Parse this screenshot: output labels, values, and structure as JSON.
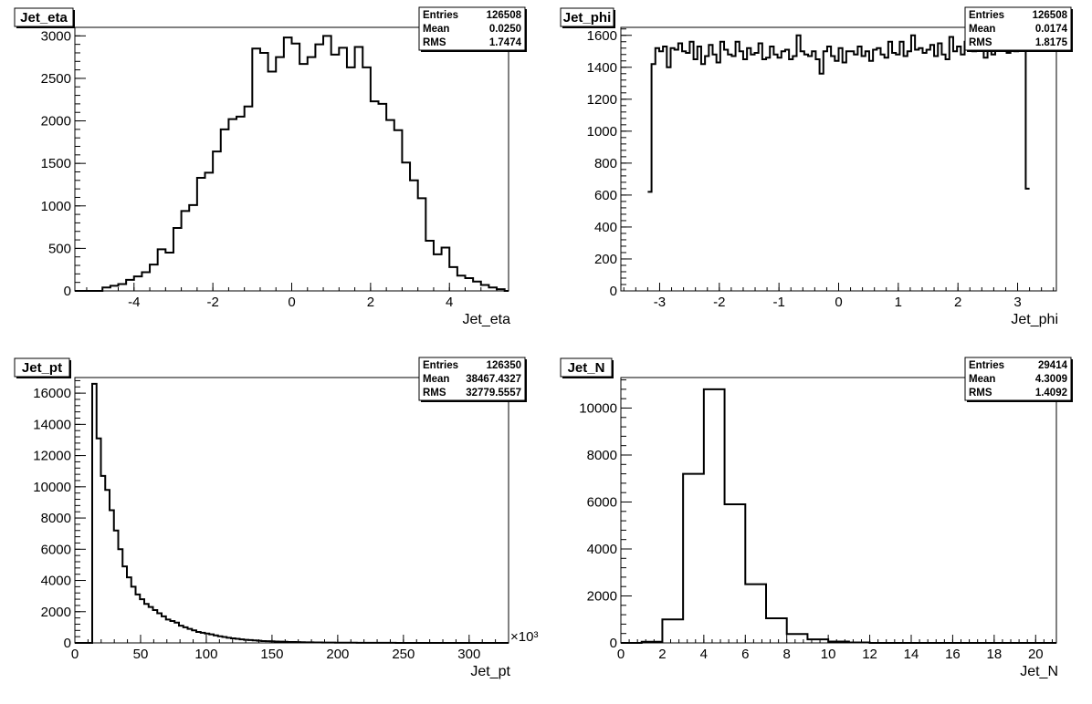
{
  "chart_data": [
    {
      "type": "histogram",
      "title": "Jet_eta",
      "xlabel": "Jet_eta",
      "ylabel": "",
      "xlim": [
        -5.5,
        5.5
      ],
      "ylim": [
        0,
        3100
      ],
      "x_ticks": [
        -4,
        -2,
        0,
        2,
        4
      ],
      "x_tick_labels": [
        "-4",
        "-2",
        "0",
        "2",
        "4"
      ],
      "y_ticks": [
        0,
        500,
        1000,
        1500,
        2000,
        2500,
        3000
      ],
      "y_tick_labels": [
        "0",
        "500",
        "1000",
        "1500",
        "2000",
        "2500",
        "3000"
      ],
      "x_multiplier": "",
      "stats": {
        "entries_label": "Entries",
        "entries": "126508",
        "mean_label": "Mean",
        "mean": "0.0250",
        "rms_label": "RMS",
        "rms": "1.7474"
      },
      "bins": [
        [
          -5.5,
          -5.0,
          0
        ],
        [
          -5.0,
          -4.8,
          0
        ],
        [
          -4.8,
          -4.6,
          40
        ],
        [
          -4.6,
          -4.4,
          60
        ],
        [
          -4.4,
          -4.2,
          80
        ],
        [
          -4.2,
          -4.0,
          130
        ],
        [
          -4.0,
          -3.8,
          170
        ],
        [
          -3.8,
          -3.6,
          220
        ],
        [
          -3.6,
          -3.4,
          310
        ],
        [
          -3.4,
          -3.2,
          490
        ],
        [
          -3.2,
          -3.0,
          450
        ],
        [
          -3.0,
          -2.8,
          740
        ],
        [
          -2.8,
          -2.6,
          940
        ],
        [
          -2.6,
          -2.4,
          1010
        ],
        [
          -2.4,
          -2.2,
          1330
        ],
        [
          -2.2,
          -2.0,
          1390
        ],
        [
          -2.0,
          -1.8,
          1640
        ],
        [
          -1.8,
          -1.6,
          1900
        ],
        [
          -1.6,
          -1.4,
          2020
        ],
        [
          -1.4,
          -1.2,
          2050
        ],
        [
          -1.2,
          -1.0,
          2170
        ],
        [
          -1.0,
          -0.8,
          2850
        ],
        [
          -0.8,
          -0.6,
          2800
        ],
        [
          -0.6,
          -0.4,
          2580
        ],
        [
          -0.4,
          -0.2,
          2750
        ],
        [
          -0.2,
          0.0,
          2980
        ],
        [
          0.0,
          0.2,
          2910
        ],
        [
          0.2,
          0.4,
          2670
        ],
        [
          0.4,
          0.6,
          2750
        ],
        [
          0.6,
          0.8,
          2900
        ],
        [
          0.8,
          1.0,
          3000
        ],
        [
          1.0,
          1.2,
          2780
        ],
        [
          1.2,
          1.4,
          2860
        ],
        [
          1.4,
          1.6,
          2630
        ],
        [
          1.6,
          1.8,
          2870
        ],
        [
          1.8,
          2.0,
          2630
        ],
        [
          2.0,
          2.2,
          2230
        ],
        [
          2.2,
          2.4,
          2200
        ],
        [
          2.4,
          2.6,
          2010
        ],
        [
          2.6,
          2.8,
          1890
        ],
        [
          2.8,
          3.0,
          1510
        ],
        [
          3.0,
          3.2,
          1300
        ],
        [
          3.2,
          3.4,
          1090
        ],
        [
          3.4,
          3.6,
          590
        ],
        [
          3.6,
          3.8,
          430
        ],
        [
          3.8,
          4.0,
          510
        ],
        [
          4.0,
          4.2,
          280
        ],
        [
          4.2,
          4.4,
          180
        ],
        [
          4.4,
          4.6,
          150
        ],
        [
          4.6,
          4.8,
          110
        ],
        [
          4.8,
          5.0,
          70
        ],
        [
          5.0,
          5.2,
          40
        ],
        [
          5.2,
          5.4,
          20
        ],
        [
          5.4,
          5.5,
          0
        ]
      ]
    },
    {
      "type": "histogram",
      "title": "Jet_phi",
      "xlabel": "Jet_phi",
      "ylabel": "",
      "xlim": [
        -3.65,
        3.65
      ],
      "ylim": [
        0,
        1650
      ],
      "x_ticks": [
        -3,
        -2,
        -1,
        0,
        1,
        2,
        3
      ],
      "x_tick_labels": [
        "-3",
        "-2",
        "-1",
        "0",
        "1",
        "2",
        "3"
      ],
      "y_ticks": [
        0,
        200,
        400,
        600,
        800,
        1000,
        1200,
        1400,
        1600
      ],
      "y_tick_labels": [
        "0",
        "200",
        "400",
        "600",
        "800",
        "1000",
        "1200",
        "1400",
        "1600"
      ],
      "x_multiplier": "",
      "stats": {
        "entries_label": "Entries",
        "entries": "126508",
        "mean_label": "Mean",
        "mean": "0.0174",
        "rms_label": "RMS",
        "rms": "1.8175"
      },
      "bins_start": -3.2,
      "bin_width": 0.064,
      "values": [
        620,
        1420,
        1520,
        1500,
        1530,
        1400,
        1520,
        1510,
        1550,
        1500,
        1490,
        1560,
        1450,
        1530,
        1420,
        1470,
        1540,
        1480,
        1430,
        1560,
        1510,
        1480,
        1470,
        1560,
        1500,
        1450,
        1520,
        1480,
        1490,
        1550,
        1450,
        1460,
        1530,
        1480,
        1460,
        1500,
        1510,
        1450,
        1470,
        1600,
        1500,
        1480,
        1470,
        1500,
        1450,
        1360,
        1500,
        1530,
        1470,
        1440,
        1520,
        1430,
        1500,
        1500,
        1480,
        1530,
        1470,
        1500,
        1440,
        1510,
        1520,
        1480,
        1460,
        1560,
        1490,
        1480,
        1560,
        1470,
        1500,
        1600,
        1510,
        1520,
        1490,
        1510,
        1540,
        1470,
        1550,
        1480,
        1450,
        1590,
        1500,
        1530,
        1480,
        1560,
        1510,
        1500,
        1600,
        1520,
        1460,
        1540,
        1480,
        1580,
        1560,
        1510,
        1490,
        1530,
        1500,
        1540,
        1510,
        640
      ]
    },
    {
      "type": "histogram",
      "title": "Jet_pt",
      "xlabel": "Jet_pt",
      "ylabel": "",
      "xlim": [
        0,
        330
      ],
      "ylim": [
        0,
        17000
      ],
      "x_ticks": [
        0,
        50,
        100,
        150,
        200,
        250,
        300
      ],
      "x_tick_labels": [
        "0",
        "50",
        "100",
        "150",
        "200",
        "250",
        "300"
      ],
      "y_ticks": [
        0,
        2000,
        4000,
        6000,
        8000,
        10000,
        12000,
        14000,
        16000
      ],
      "y_tick_labels": [
        "0",
        "2000",
        "4000",
        "6000",
        "8000",
        "10000",
        "12000",
        "14000",
        "16000"
      ],
      "x_multiplier": "×10³",
      "stats": {
        "entries_label": "Entries",
        "entries": "126350",
        "mean_label": "Mean",
        "mean": "38467.4327",
        "rms_label": "RMS",
        "rms": "32779.5557"
      },
      "bins_start": 0,
      "bin_width": 3.3,
      "values": [
        0,
        0,
        0,
        0,
        16600,
        13100,
        10700,
        9800,
        8500,
        7200,
        6000,
        4900,
        4200,
        3600,
        3100,
        2800,
        2500,
        2300,
        2100,
        1900,
        1700,
        1500,
        1400,
        1300,
        1100,
        1000,
        900,
        800,
        700,
        650,
        600,
        550,
        480,
        420,
        380,
        330,
        290,
        260,
        230,
        200,
        180,
        160,
        140,
        120,
        110,
        100,
        90,
        80,
        70,
        60,
        55,
        50,
        45,
        40,
        36,
        32,
        28,
        25,
        22,
        20,
        18,
        16,
        14,
        12,
        11,
        10,
        9,
        8,
        7,
        6,
        5,
        5,
        4,
        4,
        3,
        3,
        3,
        2,
        2,
        2,
        2,
        1,
        1,
        1,
        1,
        1,
        1,
        1,
        1,
        1,
        1,
        1,
        1,
        1,
        1,
        1,
        1,
        1,
        1,
        1
      ]
    },
    {
      "type": "histogram",
      "title": "Jet_N",
      "xlabel": "Jet_N",
      "ylabel": "",
      "xlim": [
        0,
        21
      ],
      "ylim": [
        0,
        11300
      ],
      "x_ticks": [
        0,
        2,
        4,
        6,
        8,
        10,
        12,
        14,
        16,
        18,
        20
      ],
      "x_tick_labels": [
        "0",
        "2",
        "4",
        "6",
        "8",
        "10",
        "12",
        "14",
        "16",
        "18",
        "20"
      ],
      "y_ticks": [
        0,
        2000,
        4000,
        6000,
        8000,
        10000
      ],
      "y_tick_labels": [
        "0",
        "2000",
        "4000",
        "6000",
        "8000",
        "10000"
      ],
      "x_multiplier": "",
      "stats": {
        "entries_label": "Entries",
        "entries": "29414",
        "mean_label": "Mean",
        "mean": "4.3009",
        "rms_label": "RMS",
        "rms": "1.4092"
      },
      "bins_start": 0,
      "bin_width": 1,
      "values": [
        0,
        50,
        1000,
        7200,
        10800,
        5900,
        2500,
        1050,
        380,
        150,
        60,
        20,
        0,
        0,
        0,
        0,
        0,
        0,
        0,
        0,
        0
      ]
    }
  ]
}
